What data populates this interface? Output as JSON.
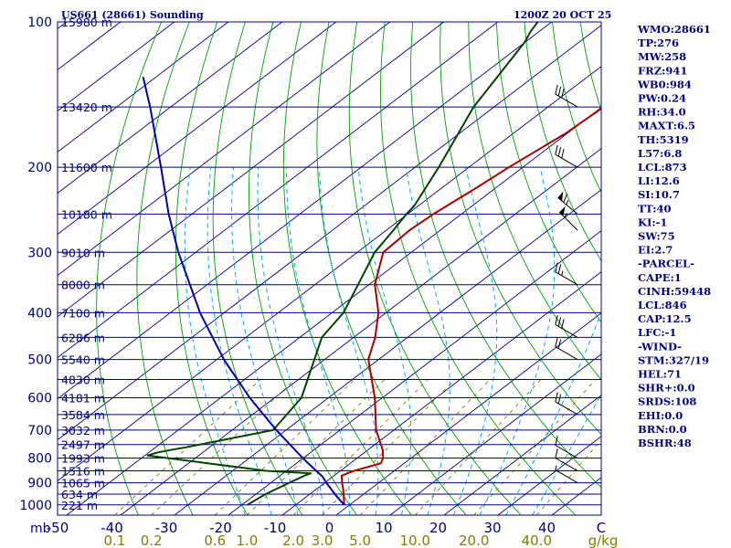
{
  "header": {
    "station": "US661 (28661) Sounding",
    "time": "1200Z 20 OCT 25"
  },
  "stats": [
    "WMO:28661",
    "TP:276",
    "MW:258",
    "FRZ:941",
    "WB0:984",
    "PW:0.24",
    "RH:34.0",
    "MAXT:6.5",
    "TH:5319",
    "L57:6.8",
    "LCL:873",
    "LI:12.6",
    "SI:10.7",
    "TT:40",
    "KI:-1",
    "SW:75",
    "EI:2.7",
    "-PARCEL-",
    "CAPE:1",
    "CINH:59448",
    "LCL:846",
    "CAP:12.5",
    "LFC:-1",
    "-WIND-",
    "STM:327/19",
    "HEL:71",
    "SHR+:0.0",
    "SRDS:108",
    "EHI:0.0",
    "BRN:0.0",
    "BSHR:48"
  ],
  "colors": {
    "frame": "#000080",
    "isobar": "#000080",
    "isotherm": "#000080",
    "dry_adiabat": "#00a000",
    "moist_adiabat": "#00aaff",
    "mixing_ratio": "#808000",
    "temperature": "#aa0000",
    "dewpoint": "#004400",
    "parcel": "#0000aa",
    "wind_barb": "#000000"
  },
  "chart_data": {
    "type": "line",
    "chart_kind": "skew-t log-p sounding",
    "pressure_ticks": [
      "100",
      "200",
      "300",
      "400",
      "500",
      "600",
      "700",
      "800",
      "900",
      "1000"
    ],
    "pressure_unit": "mb",
    "temperature_ticks": [
      "-50",
      "-40",
      "-30",
      "-20",
      "-10",
      "0",
      "10",
      "20",
      "30",
      "40",
      "C"
    ],
    "mixing_ratio_ticks": [
      "0.1",
      "0.2",
      "0.6",
      "1.0",
      "2.0",
      "3.0",
      "5.0",
      "10.0",
      "20.0",
      "40.0",
      "g/kg"
    ],
    "mixing_ratio_values": [
      0.1,
      0.2,
      0.6,
      1.0,
      2.0,
      3.0,
      5.0,
      10.0,
      20.0,
      40.0
    ],
    "height_labels": [
      {
        "p": 100,
        "label": "15980 m"
      },
      {
        "p": 150,
        "label": "13420 m"
      },
      {
        "p": 200,
        "label": "11600 m"
      },
      {
        "p": 250,
        "label": "10180 m"
      },
      {
        "p": 300,
        "label": "9010 m"
      },
      {
        "p": 350,
        "label": "8000 m"
      },
      {
        "p": 400,
        "label": "7100 m"
      },
      {
        "p": 450,
        "label": "6286 m"
      },
      {
        "p": 500,
        "label": "5540 m"
      },
      {
        "p": 550,
        "label": "4830 m"
      },
      {
        "p": 600,
        "label": "4181 m"
      },
      {
        "p": 650,
        "label": "3584 m"
      },
      {
        "p": 700,
        "label": "3032 m"
      },
      {
        "p": 750,
        "label": "2497 m"
      },
      {
        "p": 800,
        "label": "1993 m"
      },
      {
        "p": 850,
        "label": "1516 m"
      },
      {
        "p": 900,
        "label": "1065 m"
      },
      {
        "p": 950,
        "label": "634 m"
      },
      {
        "p": 1000,
        "label": "221 m"
      }
    ],
    "p_range": [
      1050,
      100
    ],
    "t_range_at_bottom": [
      -50,
      50
    ],
    "grid": true,
    "series": [
      {
        "id": "temperature",
        "p": [
          1000,
          960,
          925,
          900,
          870,
          850,
          820,
          800,
          770,
          700,
          600,
          500,
          450,
          400,
          350,
          300,
          270,
          250,
          220,
          200,
          170,
          150,
          125,
          110,
          105,
          100
        ],
        "t": [
          -1.0,
          -3.2,
          -5.2,
          -6.8,
          -8.6,
          -7.5,
          -4.3,
          -5.2,
          -7.2,
          -13.3,
          -21.4,
          -31.9,
          -36.0,
          -41.4,
          -48.9,
          -55.2,
          -55.7,
          -55.2,
          -53.6,
          -52.6,
          -50.3,
          -49.7,
          -49.9,
          -51.6,
          -52.1,
          -53.7
        ]
      },
      {
        "id": "dewpoint",
        "p": [
          1000,
          950,
          900,
          870,
          860,
          850,
          790,
          780,
          770,
          760,
          700,
          600,
          500,
          450,
          400,
          350,
          300,
          270,
          250,
          240,
          200,
          150,
          110,
          105,
          100
        ],
        "t": [
          -19.0,
          -18.2,
          -16.6,
          -15.5,
          -14.9,
          -23.8,
          -49.5,
          -48.5,
          -46.7,
          -44.4,
          -32.4,
          -35.0,
          -41.9,
          -45.9,
          -47.9,
          -52.0,
          -56.8,
          -58.7,
          -60.2,
          -60.8,
          -65.6,
          -73.8,
          -80.1,
          -81.5,
          -82.6
        ]
      },
      {
        "id": "parcel",
        "p": [
          1000,
          960,
          925,
          900,
          873,
          850,
          800,
          700,
          600,
          500,
          400,
          300,
          250,
          200,
          150,
          130
        ],
        "t": [
          -1.0,
          -4.5,
          -7.5,
          -9.7,
          -12.0,
          -14.5,
          -20.1,
          -31.8,
          -44.6,
          -58.7,
          -74.5,
          -93.2,
          -104.3,
          -117.1,
          -133.8,
          -142.4
        ]
      }
    ],
    "wind_barbs": [
      {
        "p": 150,
        "dir": 300,
        "spd": 30
      },
      {
        "p": 200,
        "dir": 300,
        "spd": 30
      },
      {
        "p": 250,
        "dir": 310,
        "spd": 65
      },
      {
        "p": 270,
        "dir": 315,
        "spd": 55
      },
      {
        "p": 350,
        "dir": 300,
        "spd": 25
      },
      {
        "p": 450,
        "dir": 300,
        "spd": 30
      },
      {
        "p": 500,
        "dir": 300,
        "spd": 20
      },
      {
        "p": 650,
        "dir": 300,
        "spd": 20
      },
      {
        "p": 800,
        "dir": 300,
        "spd": 10
      },
      {
        "p": 850,
        "dir": 300,
        "spd": 10
      },
      {
        "p": 900,
        "dir": 300,
        "spd": 5
      }
    ]
  }
}
